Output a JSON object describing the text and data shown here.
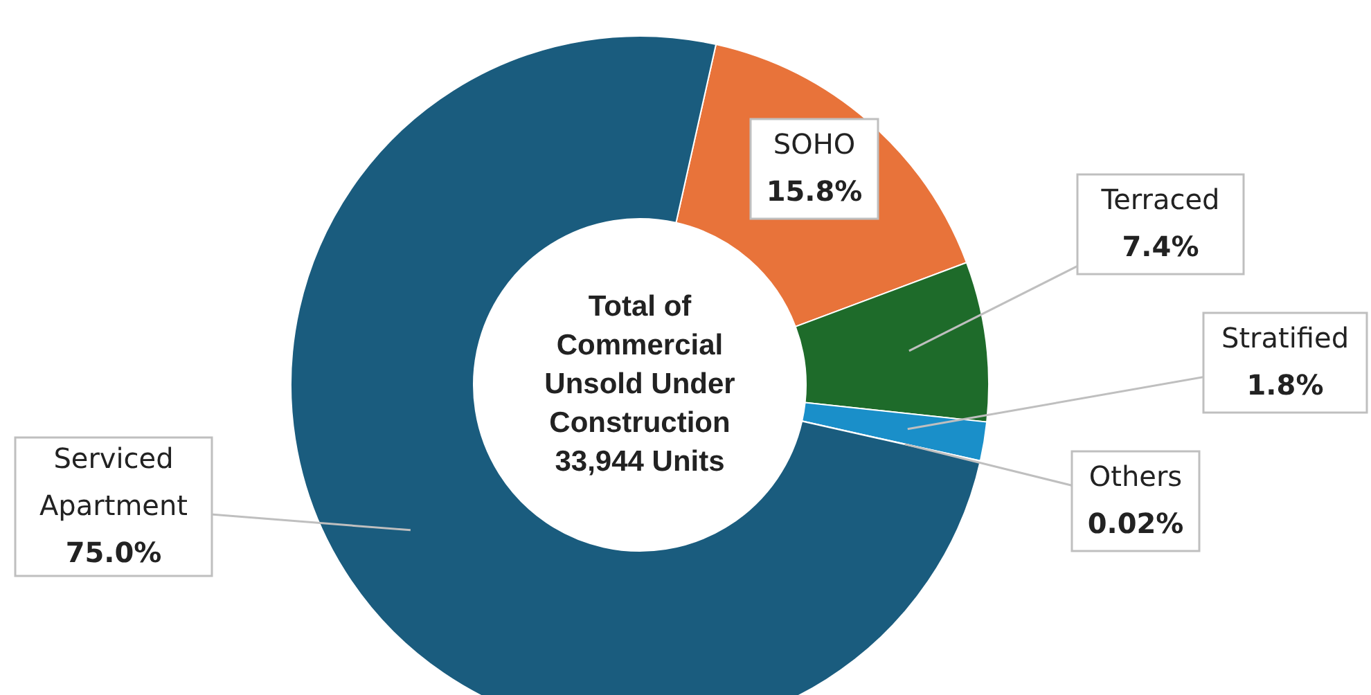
{
  "chart_data": {
    "type": "donut",
    "title": "Total of\nCommercial\nUnsold Under\nConstruction\n33,944 Units",
    "categories": [
      "SOHO",
      "Terraced",
      "Stratified",
      "Others",
      "Serviced Apartment"
    ],
    "values": [
      15.8,
      7.4,
      1.8,
      0.02,
      75.0
    ],
    "value_labels": [
      "15.8%",
      "7.4%",
      "1.8%",
      "0.02%",
      "75.0%"
    ],
    "colors": [
      "#e8733a",
      "#1e6b2a",
      "#1a8fc9",
      "#8fd0ef",
      "#1a5c7e"
    ]
  }
}
